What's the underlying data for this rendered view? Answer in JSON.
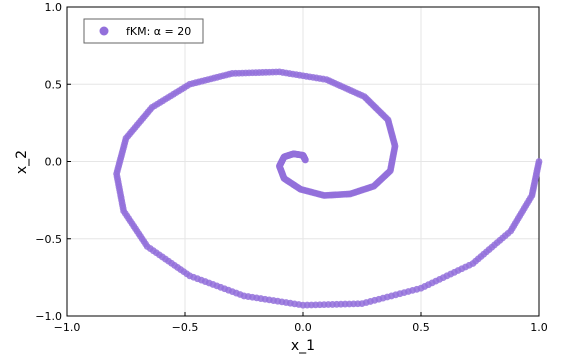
{
  "chart_data": {
    "type": "scatter",
    "title": "",
    "xlabel": "x_1",
    "ylabel": "x_2",
    "xlim": [
      -1.0,
      1.0
    ],
    "ylim": [
      -1.0,
      1.0
    ],
    "xticks": [
      -1.0,
      -0.5,
      0.0,
      0.5,
      1.0
    ],
    "yticks": [
      -1.0,
      -0.5,
      0.0,
      0.5,
      1.0
    ],
    "xtick_labels": [
      "−1.0",
      "−0.5",
      "0.0",
      "0.5",
      "1.0"
    ],
    "ytick_labels": [
      "−1.0",
      "−0.5",
      "0.0",
      "0.5",
      "1.0"
    ],
    "grid": true,
    "legend_position": "top-left",
    "series": [
      {
        "name": "fKM: α = 20",
        "color": "#9370db",
        "marker": "circle",
        "points": [
          [
            1.0,
            0.0
          ],
          [
            0.97,
            -0.22
          ],
          [
            0.88,
            -0.45
          ],
          [
            0.72,
            -0.66
          ],
          [
            0.5,
            -0.82
          ],
          [
            0.25,
            -0.92
          ],
          [
            0.0,
            -0.93
          ],
          [
            -0.25,
            -0.87
          ],
          [
            -0.48,
            -0.74
          ],
          [
            -0.66,
            -0.55
          ],
          [
            -0.76,
            -0.32
          ],
          [
            -0.79,
            -0.08
          ],
          [
            -0.75,
            0.15
          ],
          [
            -0.64,
            0.35
          ],
          [
            -0.48,
            0.5
          ],
          [
            -0.3,
            0.57
          ],
          [
            -0.1,
            0.58
          ],
          [
            0.1,
            0.53
          ],
          [
            0.26,
            0.42
          ],
          [
            0.36,
            0.27
          ],
          [
            0.39,
            0.1
          ],
          [
            0.37,
            -0.06
          ],
          [
            0.3,
            -0.16
          ],
          [
            0.2,
            -0.21
          ],
          [
            0.09,
            -0.22
          ],
          [
            -0.01,
            -0.18
          ],
          [
            -0.08,
            -0.11
          ],
          [
            -0.1,
            -0.03
          ],
          [
            -0.08,
            0.03
          ],
          [
            -0.04,
            0.05
          ],
          [
            0.0,
            0.04
          ],
          [
            0.01,
            0.01
          ]
        ]
      }
    ]
  }
}
